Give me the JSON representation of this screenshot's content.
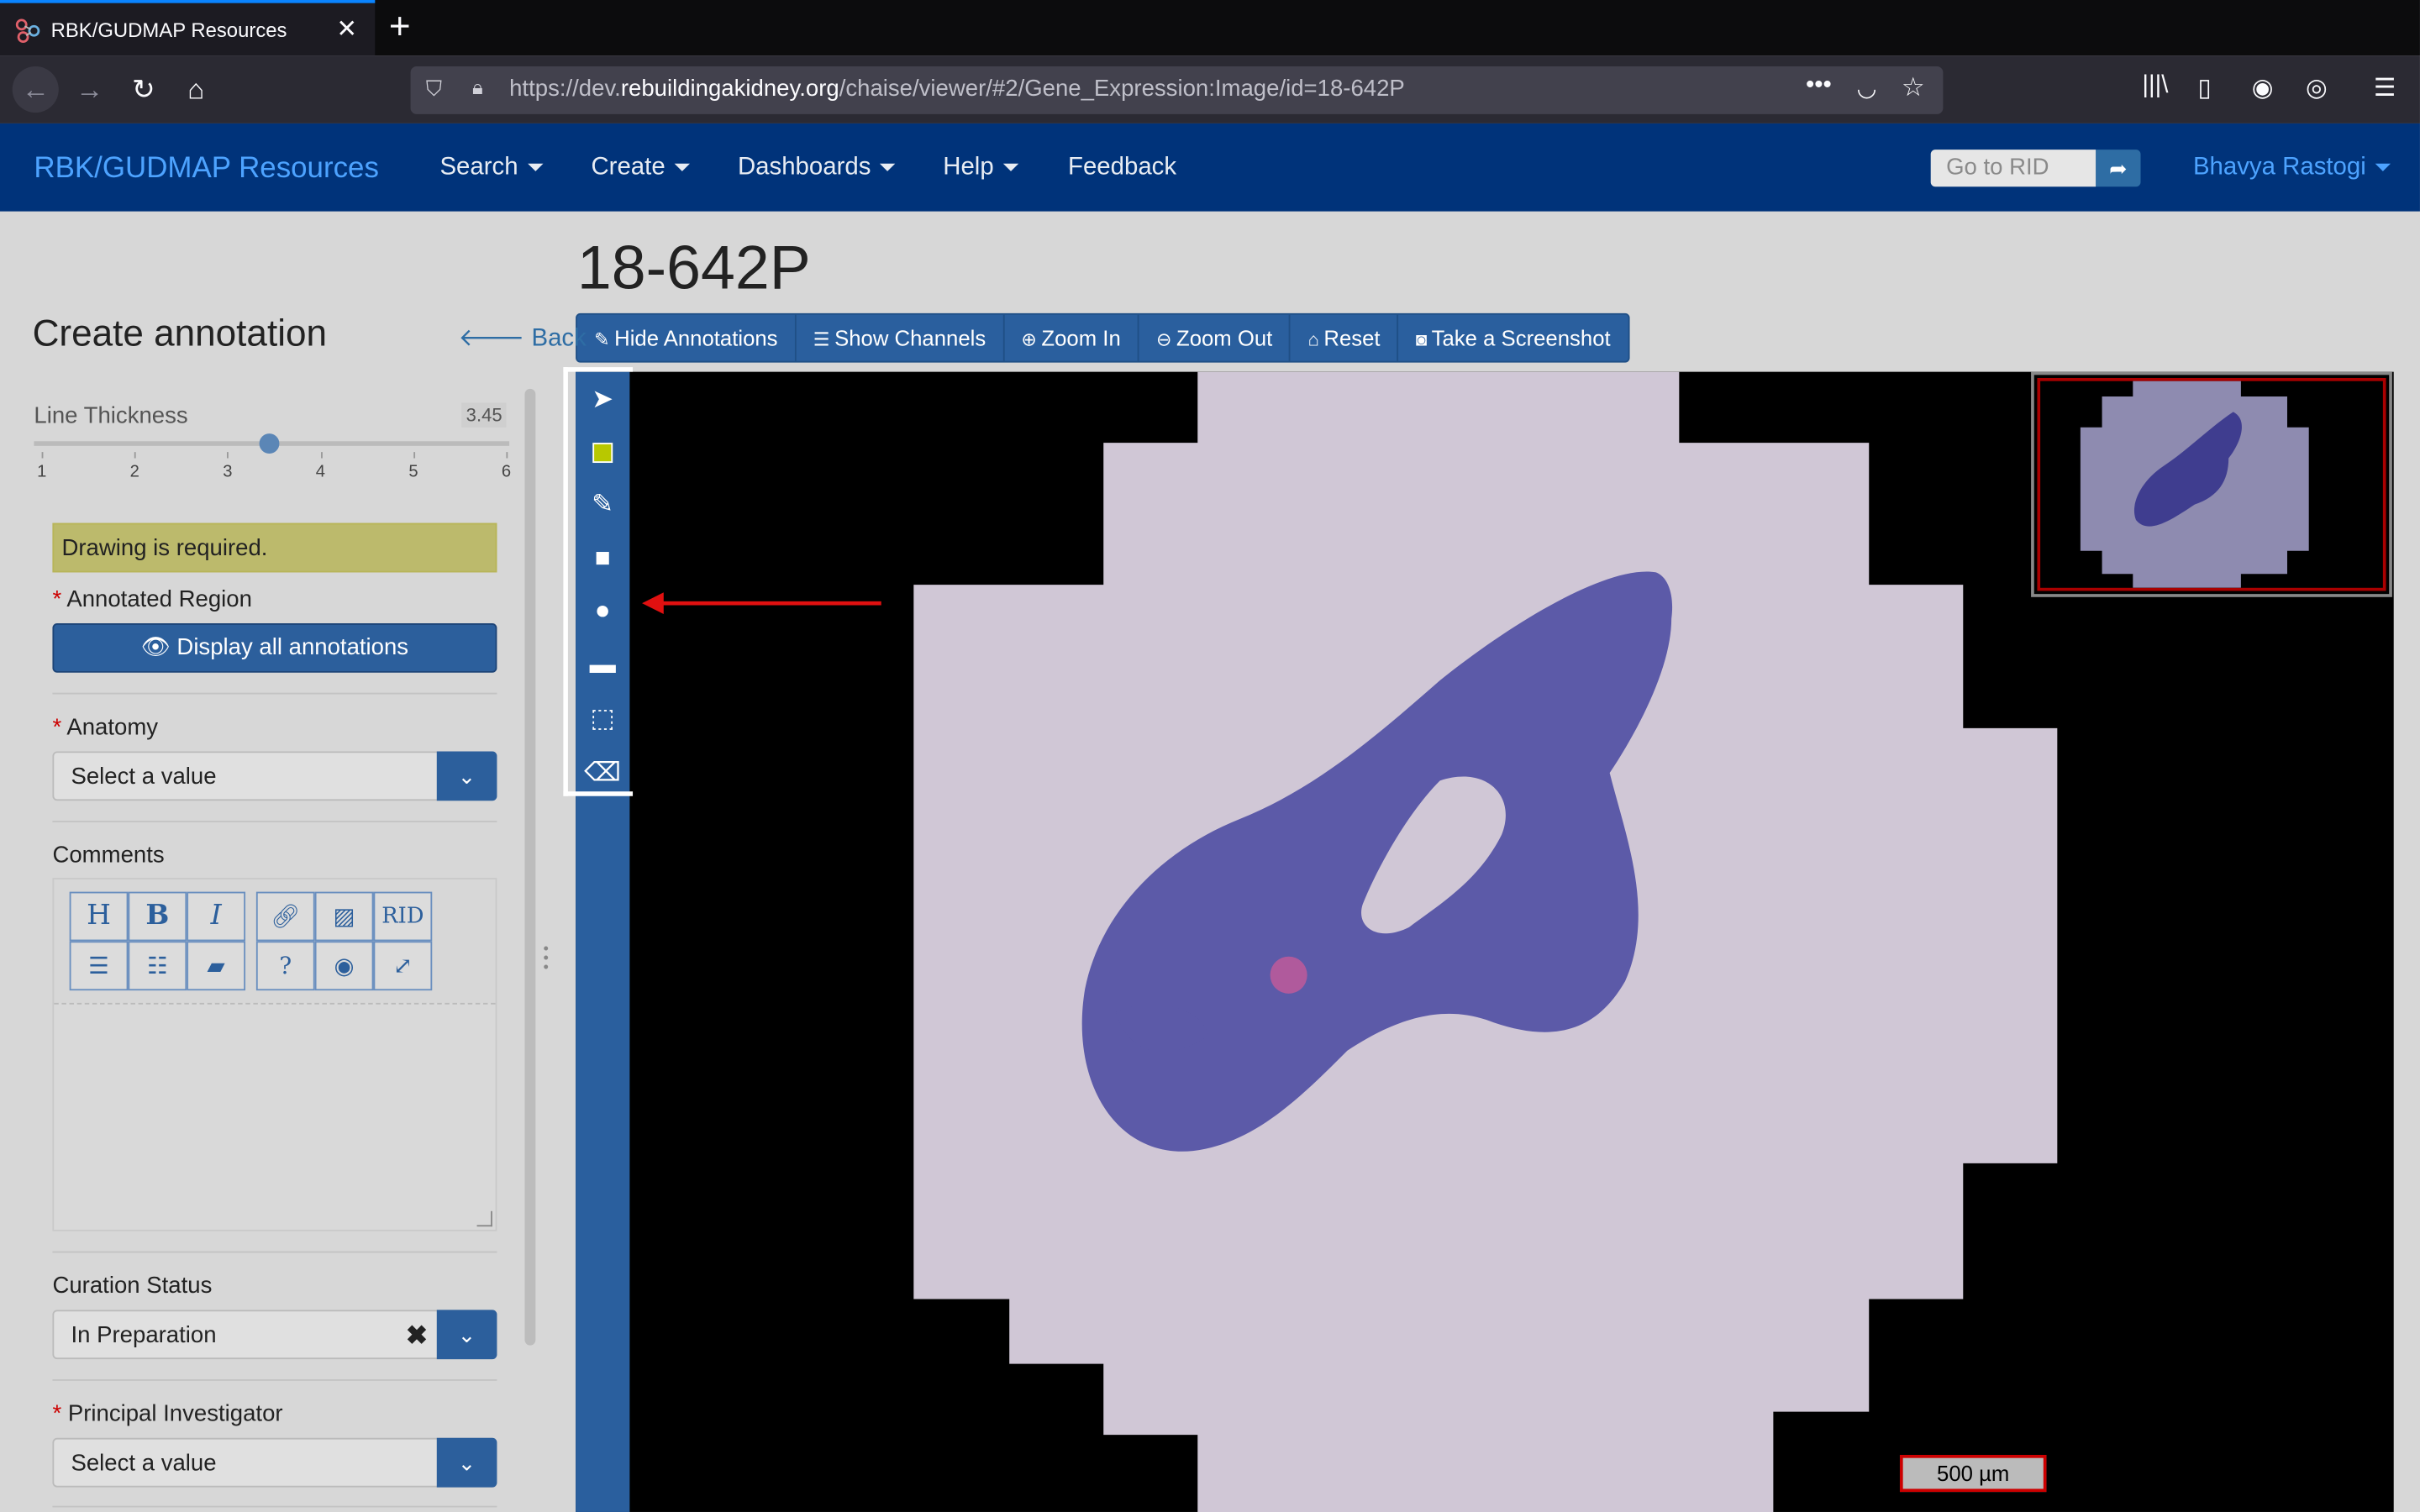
{
  "browser": {
    "tab_title": "RBK/GUDMAP Resources",
    "url_prefix": "https://dev.",
    "url_domain": "rebuildingakidney.org",
    "url_path": "/chaise/viewer/#2/Gene_Expression:Image/id=18-642P"
  },
  "header": {
    "brand": "RBK/GUDMAP Resources",
    "menus": [
      "Search",
      "Create",
      "Dashboards",
      "Help"
    ],
    "feedback": "Feedback",
    "goto_placeholder": "Go to RID",
    "user": "Bhavya Rastogi"
  },
  "page": {
    "title": "18-642P"
  },
  "toolbar": {
    "hide_annotations": "Hide Annotations",
    "show_channels": "Show Channels",
    "zoom_in": "Zoom In",
    "zoom_out": "Zoom Out",
    "reset": "Reset",
    "screenshot": "Take a Screenshot"
  },
  "panel": {
    "heading": "Create annotation",
    "back": "Back",
    "line_thickness_label": "Line Thickness",
    "line_thickness_value": "3.45",
    "line_thickness_fraction": 0.49,
    "ticks": [
      "1",
      "2",
      "3",
      "4",
      "5",
      "6"
    ],
    "warning": "Drawing is required.",
    "annotated_region_label": "Annotated Region",
    "display_all": "Display all annotations",
    "anatomy_label": "Anatomy",
    "anatomy_value": "Select a value",
    "comments_label": "Comments",
    "editor_buttons_row1": [
      "H",
      "B",
      "I",
      "link",
      "image",
      "RID"
    ],
    "editor_buttons_row2": [
      "bullet-list",
      "numbered-list",
      "comment",
      "help",
      "preview",
      "fullscreen"
    ],
    "curation_label": "Curation Status",
    "curation_value": "In Preparation",
    "pi_label": "Principal Investigator",
    "pi_value": "Select a value"
  },
  "viewer": {
    "scale_label": "500 µm"
  },
  "colors": {
    "navy": "#00337a",
    "accent": "#2a5f9e",
    "link": "#4da3ff",
    "warning": "#bcba6c",
    "stain": "#5c5aa8"
  }
}
